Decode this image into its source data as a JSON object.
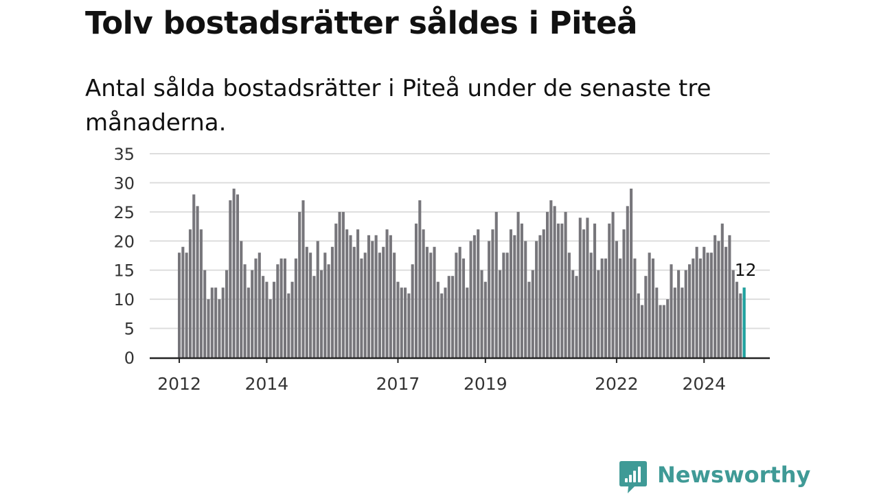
{
  "title": "Tolv bostadsrätter såldes i Piteå",
  "subtitle": "Antal sålda bostadsrätter i Piteå under de senaste tre månaderna.",
  "brand": {
    "name": "Newsworthy",
    "icon": "newsworthy-logo-icon",
    "color": "#3f9a96"
  },
  "colors": {
    "bar": "#77767b",
    "highlight": "#1fa3a0",
    "grid": "#dddddd",
    "axis": "#222222",
    "text": "#111111"
  },
  "chart_data": {
    "type": "bar",
    "title": "Tolv bostadsrätter såldes i Piteå",
    "subtitle": "Antal sålda bostadsrätter i Piteå under de senaste tre månaderna.",
    "x_start": "2012-01",
    "x_tick_labels": [
      "2012",
      "2014",
      "2017",
      "2019",
      "2022",
      "2024"
    ],
    "x_tick_dates": [
      "2012-01",
      "2014-01",
      "2017-01",
      "2019-01",
      "2022-01",
      "2024-01"
    ],
    "y_ticks": [
      0,
      5,
      10,
      15,
      20,
      25,
      30,
      35
    ],
    "ylim": [
      0,
      35
    ],
    "grid": true,
    "values": [
      18,
      19,
      18,
      22,
      28,
      26,
      22,
      15,
      10,
      12,
      12,
      10,
      12,
      15,
      27,
      29,
      28,
      20,
      16,
      12,
      15,
      17,
      18,
      14,
      13,
      10,
      13,
      16,
      17,
      17,
      11,
      13,
      17,
      25,
      27,
      19,
      18,
      14,
      20,
      15,
      18,
      16,
      19,
      23,
      25,
      25,
      22,
      21,
      19,
      22,
      17,
      18,
      21,
      20,
      21,
      18,
      19,
      22,
      21,
      18,
      13,
      12,
      12,
      11,
      16,
      23,
      27,
      22,
      19,
      18,
      19,
      13,
      11,
      12,
      14,
      14,
      18,
      19,
      17,
      12,
      20,
      21,
      22,
      15,
      13,
      20,
      22,
      25,
      15,
      18,
      18,
      22,
      21,
      25,
      23,
      20,
      13,
      15,
      20,
      21,
      22,
      25,
      27,
      26,
      23,
      23,
      25,
      18,
      15,
      14,
      24,
      22,
      24,
      18,
      23,
      15,
      17,
      17,
      23,
      25,
      20,
      17,
      22,
      26,
      29,
      17,
      11,
      9,
      14,
      18,
      17,
      12,
      9,
      9,
      10,
      16,
      12,
      15,
      12,
      15,
      16,
      17,
      19,
      17,
      19,
      18,
      18,
      21,
      20,
      23,
      19,
      21,
      15,
      13,
      11,
      12
    ],
    "highlight": {
      "date": "2024-12",
      "value": 12,
      "label": "12"
    }
  }
}
